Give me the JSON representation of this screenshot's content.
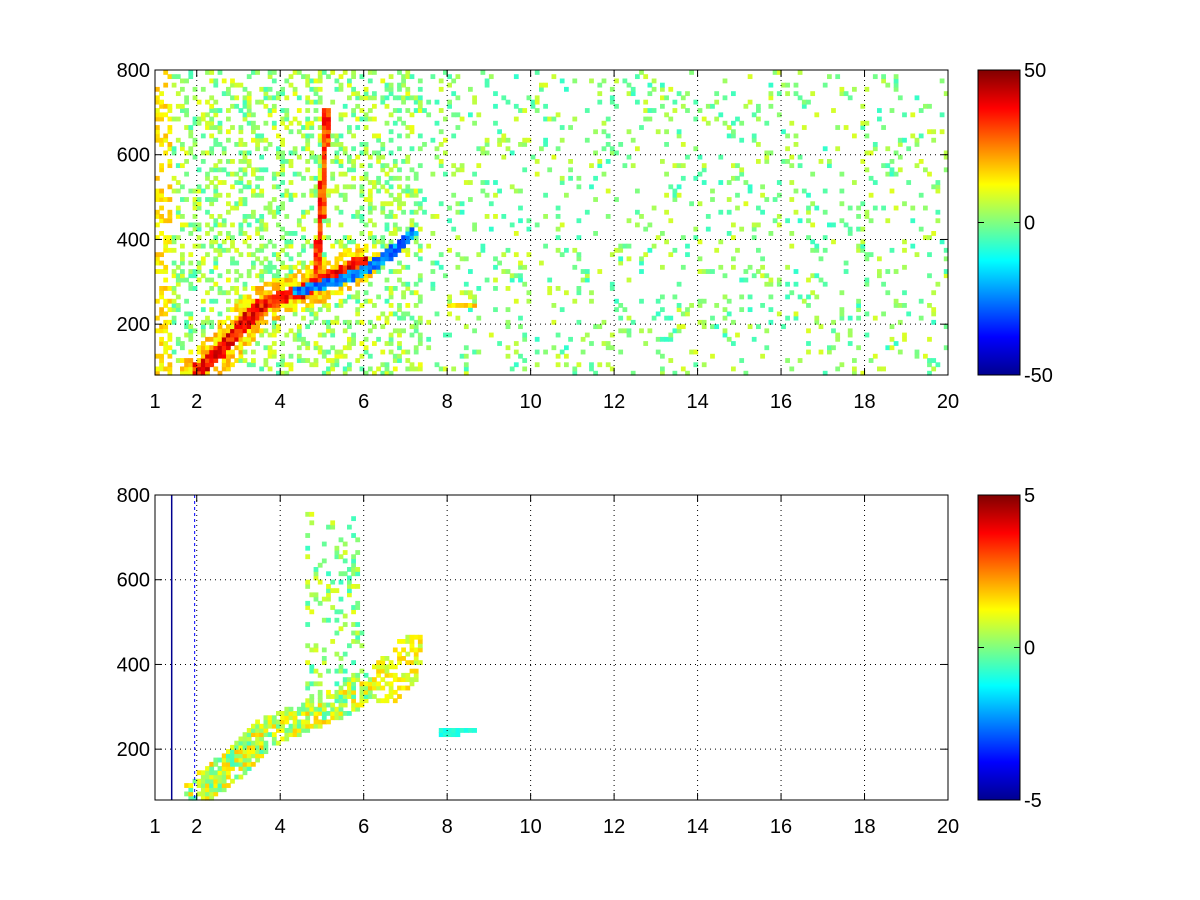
{
  "chart_data": [
    {
      "type": "heatmap",
      "title": "",
      "xlabel": "",
      "ylabel": "",
      "xlim": [
        1,
        20
      ],
      "ylim": [
        80,
        800
      ],
      "x_ticks": [
        1,
        2,
        4,
        6,
        8,
        10,
        12,
        14,
        16,
        18,
        20
      ],
      "y_ticks": [
        200,
        400,
        600,
        800
      ],
      "grid": true,
      "colorbar": {
        "range": [
          -50,
          50
        ],
        "ticks": [
          50,
          0,
          -50
        ],
        "colormap": "jet"
      },
      "features": {
        "main_ridge": [
          [
            2.0,
            90
          ],
          [
            2.5,
            130
          ],
          [
            3.0,
            190
          ],
          [
            3.5,
            240
          ],
          [
            4.0,
            260
          ],
          [
            4.5,
            275
          ],
          [
            5.0,
            300
          ],
          [
            5.5,
            320
          ],
          [
            5.9,
            345
          ]
        ],
        "blue_ridge": [
          [
            4.2,
            270
          ],
          [
            4.8,
            285
          ],
          [
            5.4,
            300
          ],
          [
            5.9,
            320
          ],
          [
            6.5,
            355
          ],
          [
            7.1,
            410
          ]
        ],
        "vertical_streak": [
          [
            4.8,
            300
          ],
          [
            4.9,
            420
          ],
          [
            5.0,
            560
          ],
          [
            5.05,
            700
          ]
        ],
        "isolated_blob": [
          [
            8.0,
            240
          ],
          [
            8.5,
            240
          ]
        ]
      }
    },
    {
      "type": "heatmap",
      "title": "",
      "xlabel": "",
      "ylabel": "",
      "xlim": [
        1,
        20
      ],
      "ylim": [
        80,
        800
      ],
      "x_ticks": [
        1,
        2,
        4,
        6,
        8,
        10,
        12,
        14,
        16,
        18,
        20
      ],
      "y_ticks": [
        200,
        400,
        600,
        800
      ],
      "grid": true,
      "colorbar": {
        "range": [
          -5,
          5
        ],
        "ticks": [
          5,
          0,
          -5
        ],
        "colormap": "jet"
      },
      "features": {
        "main_band": [
          [
            2.0,
            100
          ],
          [
            3.0,
            170
          ],
          [
            3.5,
            230
          ],
          [
            4.0,
            250
          ],
          [
            4.5,
            270
          ],
          [
            5.0,
            290
          ],
          [
            5.5,
            310
          ],
          [
            5.9,
            340
          ]
        ],
        "cluster": [
          [
            6.4,
            350
          ],
          [
            7.2,
            420
          ]
        ],
        "isolated_blob": [
          [
            7.8,
            235
          ],
          [
            8.6,
            240
          ]
        ]
      }
    }
  ]
}
